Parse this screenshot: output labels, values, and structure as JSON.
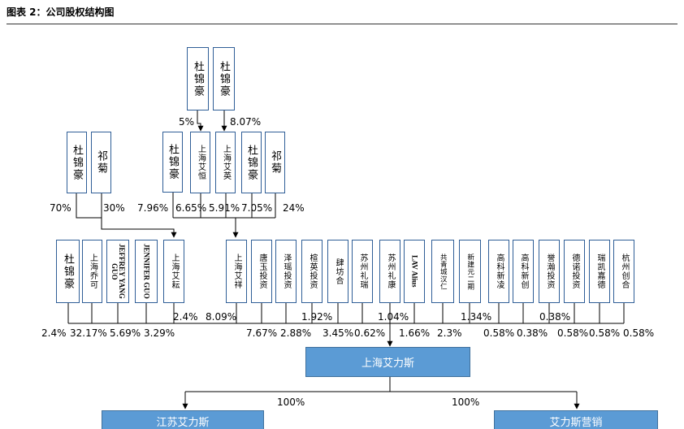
{
  "title": "图表 2：公司股权结构图",
  "boxes": {
    "top_du1": "杜锦豪",
    "top_du2": "杜锦豪",
    "l_du": "杜锦豪",
    "l_qi": "祁菊",
    "m_du": "杜锦豪",
    "aiheng": "上海艾恒",
    "aiying": "上海艾英",
    "r_du": "杜锦豪",
    "r_qi": "祁菊",
    "s1": "杜锦豪",
    "s2": "上海乔可",
    "s3": "JEFFREY YANG GUO",
    "s4": "JENNIFER GUO",
    "s5": "上海艾耘",
    "s6": "上海艾祥",
    "s7": "唐玉投资",
    "s8": "泽瑶投资",
    "s9": "楦英投资",
    "s10": "肆坊合",
    "s11": "苏州礼瑞",
    "s12": "苏州礼康",
    "s13": "LAV Alius",
    "s14": "共青城汉仁",
    "s15": "新建元二期",
    "s16": "高科新凌",
    "s17": "高科新创",
    "s18": "誉瀚投资",
    "s19": "德诺投资",
    "s20": "瑞凯嘉德",
    "s21": "杭州创合"
  },
  "percents": {
    "p_5": "5%",
    "p_807": "8.07%",
    "p_70": "70%",
    "p_30": "30%",
    "p_796": "7.96%",
    "p_665": "6.65%",
    "p_591": "5.91%",
    "p_705": "7.05%",
    "p_24": "24%",
    "p_24b": "2.4%",
    "p_809": "8.09%",
    "p_192": "1.92%",
    "p_104": "1.04%",
    "p_134": "1.34%",
    "p_038a": "0.38%",
    "b_24": "2.4%",
    "b_3217": "32.17%",
    "b_569": "5.69%",
    "b_329": "3.29%",
    "b_767": "7.67%",
    "b_288": "2.88%",
    "b_345": "3.45%",
    "b_062": "0.62%",
    "b_166": "1.66%",
    "b_23": "2.3%",
    "b_058a": "0.58%",
    "b_038": "0.38%",
    "b_058b": "0.58%",
    "b_058c": "0.58%",
    "b_058d": "0.58%",
    "p_100a": "100%",
    "p_100b": "100%"
  },
  "main": "上海艾力斯",
  "subs": {
    "left": "江苏艾力斯",
    "right": "艾力斯营销"
  },
  "colors": {
    "box_border": "#2f5e97",
    "main_fill": "#5b9bd5",
    "line": "#000000"
  }
}
